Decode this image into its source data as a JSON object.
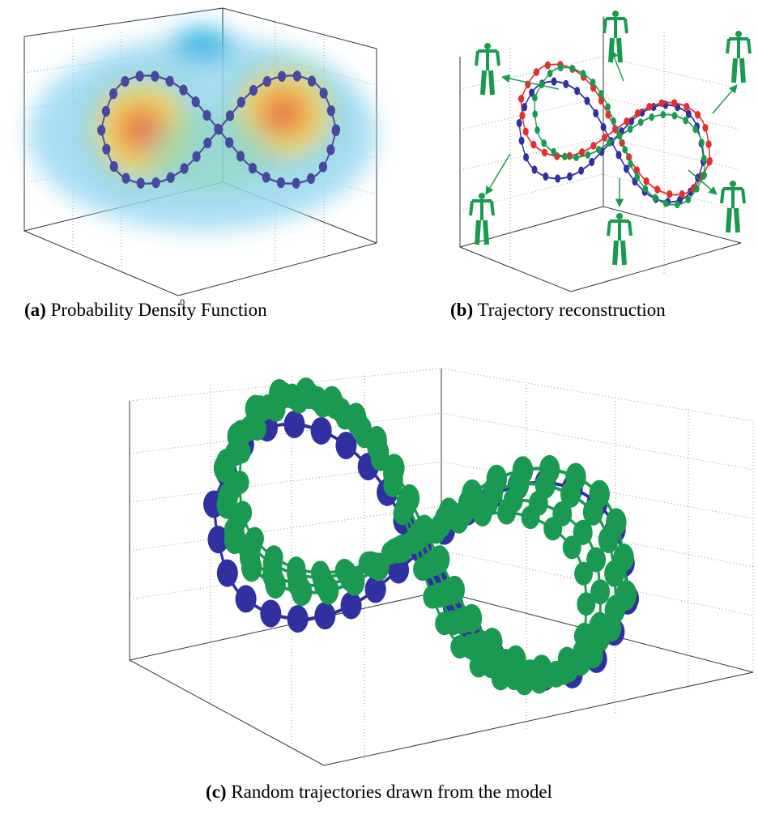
{
  "figures": [
    {
      "label": "(a)",
      "caption": "Probability Density Function",
      "tick_label": 0
    },
    {
      "label": "(b)",
      "caption": "Trajectory reconstruction"
    },
    {
      "label": "(c)",
      "caption": "Random trajectories drawn from the model"
    }
  ]
}
